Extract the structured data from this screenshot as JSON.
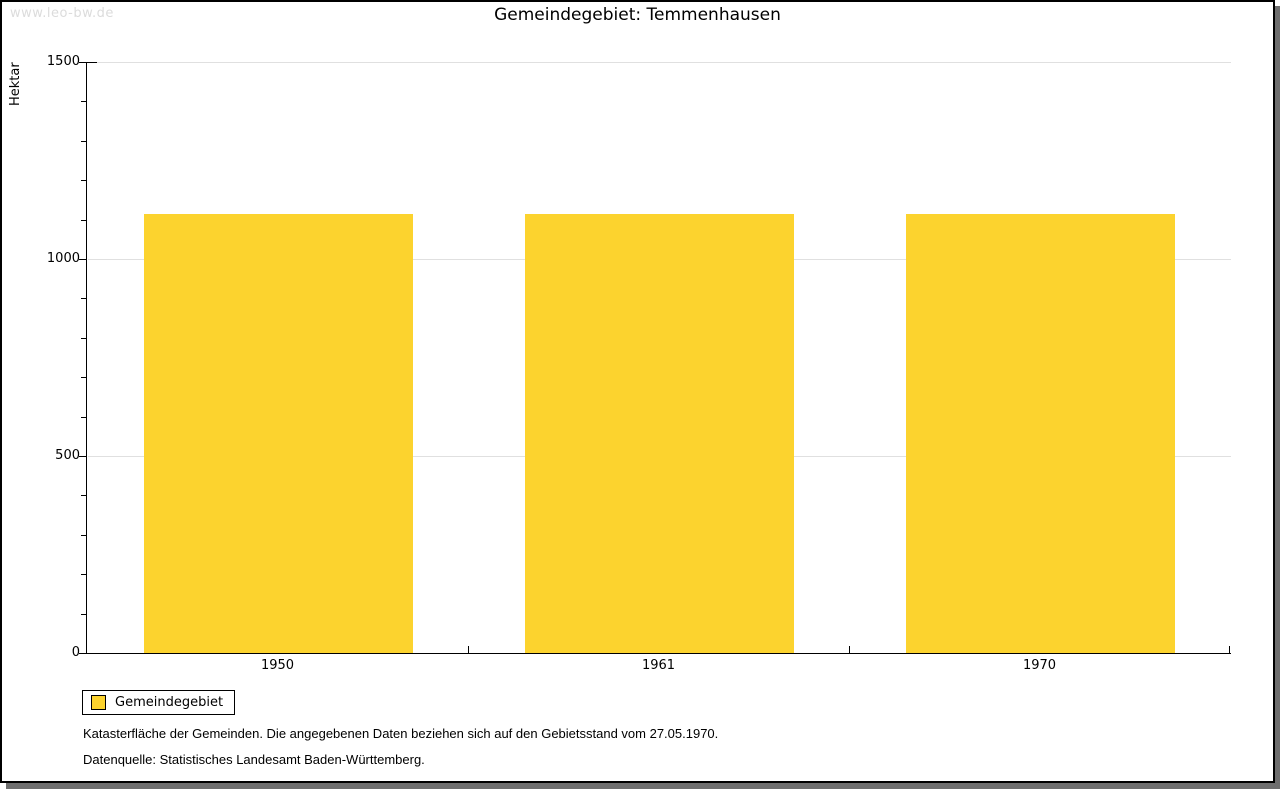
{
  "watermark": "www.leo-bw.de",
  "chart_data": {
    "type": "bar",
    "title": "Gemeindegebiet: Temmenhausen",
    "categories": [
      "1950",
      "1961",
      "1970"
    ],
    "series": [
      {
        "name": "Gemeindegebiet",
        "values": [
          1113,
          1113,
          1113
        ]
      }
    ],
    "xlabel": "",
    "ylabel": "Hektar",
    "ylim": [
      0,
      1500
    ],
    "yticks_major": [
      0,
      500,
      1000,
      1500
    ],
    "ytick_minor_step": 100,
    "grid": "horizontal-at-major-ticks",
    "legend_position": "bottom-left",
    "bar_color": "#FCD32E",
    "gridline_color": "#e0e0e0"
  },
  "footnotes": [
    "Katasterfläche der Gemeinden. Die angegebenen Daten beziehen sich auf den Gebietsstand vom 27.05.1970.",
    "Datenquelle: Statistisches Landesamt Baden-Württemberg."
  ]
}
